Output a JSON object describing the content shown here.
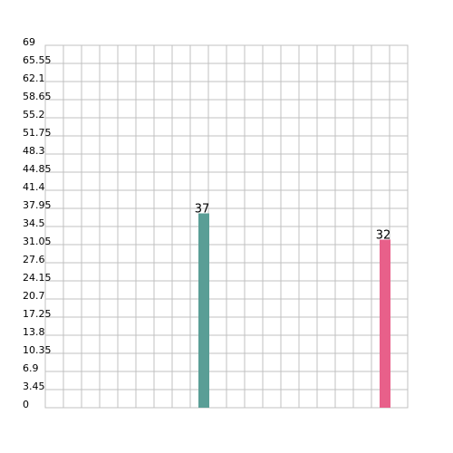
{
  "chart_data": {
    "type": "bar",
    "title": "",
    "xlabel": "",
    "ylabel": "",
    "ylim": [
      0,
      69
    ],
    "y_ticks": [
      "0",
      "3.45",
      "6.9",
      "10.35",
      "13.8",
      "17.25",
      "20.7",
      "24.15",
      "27.6",
      "31.05",
      "34.5",
      "37.95",
      "41.4",
      "44.85",
      "48.3",
      "51.75",
      "55.2",
      "58.65",
      "62.1",
      "65.55",
      "69"
    ],
    "x_slots": 20,
    "grid": true,
    "legend": "none",
    "bars": [
      {
        "slot": 8.75,
        "value": 37,
        "label": "37",
        "color": "#5a9e96"
      },
      {
        "slot": 18.75,
        "value": 32,
        "label": "32",
        "color": "#e8608a"
      }
    ]
  }
}
